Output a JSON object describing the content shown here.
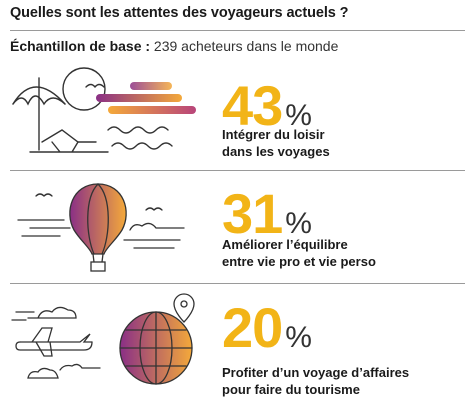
{
  "title": "Quelles sont les attentes des voyageurs actuels ?",
  "sample": {
    "label": "Échantillon de base :",
    "value": "239 acheteurs dans le monde"
  },
  "items": [
    {
      "value": "43",
      "unit": "%",
      "line1": "Intégrer du loisir",
      "line2": "dans les voyages",
      "icon": "beach-sunset-illustration"
    },
    {
      "value": "31",
      "unit": "%",
      "line1": "Améliorer l’équilibre",
      "line2": "entre vie pro et vie perso",
      "icon": "hot-air-balloon-illustration"
    },
    {
      "value": "20",
      "unit": "%",
      "line1": "Profiter d’un voyage d’affaires",
      "line2": "pour faire du tourisme",
      "icon": "airplane-globe-illustration"
    }
  ],
  "colors": {
    "accent": "#f2b417",
    "gradient_start": "#f4a93a",
    "gradient_end": "#8a2f86",
    "rule": "#9a9a9a"
  }
}
